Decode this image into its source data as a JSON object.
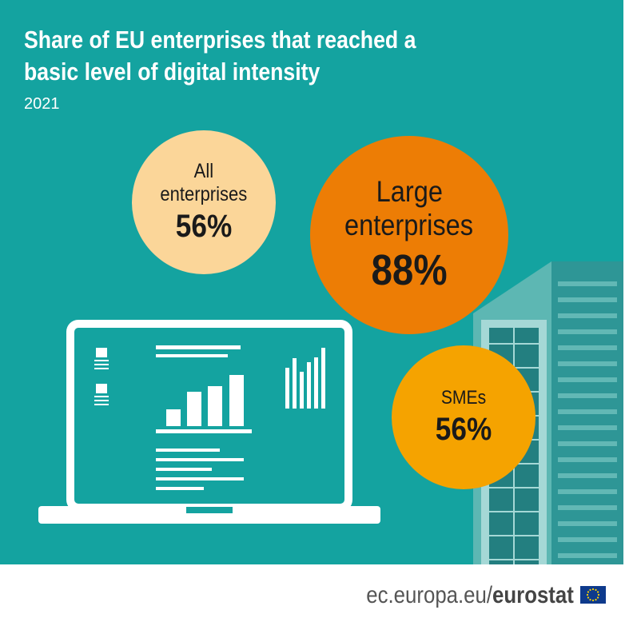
{
  "title_line1": "Share of EU enterprises that reached a",
  "title_line2": "basic level of digital intensity",
  "year": "2021",
  "circles": {
    "all": {
      "label_line1": "All",
      "label_line2": "enterprises",
      "value": "56%",
      "color": "#fbd699"
    },
    "large": {
      "label_line1": "Large",
      "label_line2": "enterprises",
      "value": "88%",
      "color": "#ed7d05"
    },
    "sme": {
      "label_line1": "SMEs",
      "value": "56%",
      "color": "#f5a300"
    }
  },
  "footer": {
    "site": "ec.europa.eu/",
    "brand": "eurostat"
  },
  "colors": {
    "background": "#14a3a0",
    "laptop": "#ffffff",
    "building": "#2e9696"
  },
  "icons": [
    "laptop-icon",
    "building-icon",
    "eu-flag-icon"
  ]
}
